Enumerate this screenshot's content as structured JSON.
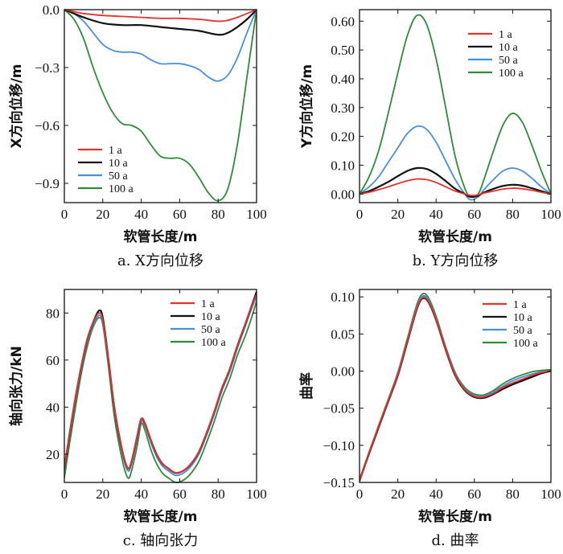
{
  "colors": {
    "s1": "#e8302e",
    "s10": "#111111",
    "s50": "#4a90d9",
    "s100": "#2e8b3a"
  },
  "chart_data": [
    {
      "id": "a",
      "type": "line",
      "title": "",
      "caption": "a. X方向位移",
      "xlabel": "软管长度/m",
      "ylabel": "X方向位移/m",
      "xlim": [
        0,
        100
      ],
      "ylim": [
        -1.0,
        0.0
      ],
      "xticks": [
        0,
        20,
        40,
        60,
        80,
        100
      ],
      "yticks": [
        0.0,
        -0.3,
        -0.6,
        -0.9
      ],
      "ytick_labels": [
        "0.0",
        "−0.3",
        "−0.6",
        "−0.9"
      ],
      "legend": "lower-left",
      "series": [
        {
          "name": "1 a",
          "color_key": "s1",
          "x": [
            0,
            5,
            10,
            20,
            30,
            40,
            50,
            60,
            70,
            80,
            85,
            90,
            95,
            100
          ],
          "values": [
            0,
            -0.01,
            -0.02,
            -0.03,
            -0.035,
            -0.04,
            -0.045,
            -0.045,
            -0.05,
            -0.06,
            -0.055,
            -0.04,
            -0.02,
            0
          ]
        },
        {
          "name": "10 a",
          "color_key": "s10",
          "x": [
            0,
            5,
            10,
            20,
            30,
            40,
            50,
            60,
            70,
            80,
            85,
            90,
            95,
            100
          ],
          "values": [
            0,
            -0.02,
            -0.04,
            -0.07,
            -0.08,
            -0.08,
            -0.09,
            -0.1,
            -0.11,
            -0.13,
            -0.12,
            -0.09,
            -0.05,
            0
          ]
        },
        {
          "name": "50 a",
          "color_key": "s50",
          "x": [
            0,
            5,
            10,
            15,
            20,
            25,
            30,
            35,
            40,
            45,
            50,
            55,
            60,
            65,
            70,
            75,
            80,
            85,
            90,
            95,
            100
          ],
          "values": [
            0,
            -0.02,
            -0.06,
            -0.12,
            -0.18,
            -0.21,
            -0.22,
            -0.22,
            -0.23,
            -0.26,
            -0.28,
            -0.28,
            -0.28,
            -0.29,
            -0.31,
            -0.35,
            -0.37,
            -0.34,
            -0.25,
            -0.12,
            0
          ]
        },
        {
          "name": "100 a",
          "color_key": "s100",
          "x": [
            0,
            5,
            10,
            15,
            20,
            25,
            30,
            35,
            40,
            45,
            50,
            55,
            60,
            65,
            70,
            75,
            80,
            85,
            90,
            95,
            100
          ],
          "values": [
            0,
            -0.05,
            -0.15,
            -0.3,
            -0.43,
            -0.53,
            -0.59,
            -0.6,
            -0.63,
            -0.7,
            -0.76,
            -0.77,
            -0.77,
            -0.8,
            -0.87,
            -0.95,
            -0.99,
            -0.93,
            -0.7,
            -0.35,
            0
          ]
        }
      ]
    },
    {
      "id": "b",
      "type": "line",
      "title": "",
      "caption": "b. Y方向位移",
      "xlabel": "软管长度/m",
      "ylabel": "Y方向位移/m",
      "xlim": [
        0,
        100
      ],
      "ylim": [
        -0.03,
        0.64
      ],
      "xticks": [
        0,
        20,
        40,
        60,
        80,
        100
      ],
      "yticks": [
        0.0,
        0.1,
        0.2,
        0.3,
        0.4,
        0.5,
        0.6
      ],
      "ytick_labels": [
        "0.00",
        "0.10",
        "0.20",
        "0.30",
        "0.40",
        "0.50",
        "0.60"
      ],
      "legend": "top-right",
      "series": [
        {
          "name": "1 a",
          "color_key": "s1",
          "x": [
            0,
            5,
            10,
            15,
            20,
            25,
            30,
            35,
            40,
            45,
            50,
            55,
            58,
            62,
            65,
            70,
            75,
            80,
            85,
            90,
            95,
            100
          ],
          "values": [
            0,
            0.006,
            0.015,
            0.025,
            0.036,
            0.046,
            0.052,
            0.05,
            0.04,
            0.025,
            0.01,
            0.0,
            -0.005,
            -0.003,
            0.003,
            0.01,
            0.017,
            0.02,
            0.018,
            0.013,
            0.006,
            0
          ]
        },
        {
          "name": "10 a",
          "color_key": "s10",
          "x": [
            0,
            5,
            10,
            15,
            20,
            25,
            30,
            35,
            40,
            45,
            50,
            55,
            58,
            62,
            65,
            70,
            75,
            80,
            85,
            90,
            95,
            100
          ],
          "values": [
            0,
            0.01,
            0.025,
            0.042,
            0.062,
            0.08,
            0.09,
            0.087,
            0.07,
            0.045,
            0.018,
            0.0,
            -0.01,
            -0.006,
            0.005,
            0.018,
            0.028,
            0.032,
            0.029,
            0.02,
            0.01,
            0
          ]
        },
        {
          "name": "50 a",
          "color_key": "s50",
          "x": [
            0,
            5,
            10,
            15,
            20,
            25,
            30,
            35,
            40,
            45,
            50,
            55,
            58,
            62,
            65,
            70,
            75,
            80,
            85,
            90,
            95,
            100
          ],
          "values": [
            0,
            0.025,
            0.06,
            0.11,
            0.16,
            0.21,
            0.235,
            0.225,
            0.18,
            0.115,
            0.05,
            0.0,
            -0.02,
            -0.01,
            0.015,
            0.05,
            0.08,
            0.09,
            0.08,
            0.055,
            0.025,
            0
          ]
        },
        {
          "name": "100 a",
          "color_key": "s100",
          "x": [
            0,
            5,
            10,
            15,
            20,
            25,
            30,
            35,
            40,
            45,
            50,
            55,
            58,
            62,
            65,
            70,
            75,
            80,
            85,
            90,
            95,
            100
          ],
          "values": [
            0,
            0.06,
            0.15,
            0.28,
            0.42,
            0.55,
            0.62,
            0.59,
            0.47,
            0.3,
            0.13,
            0.02,
            -0.01,
            0.0,
            0.05,
            0.15,
            0.24,
            0.28,
            0.25,
            0.17,
            0.08,
            0
          ]
        }
      ]
    },
    {
      "id": "c",
      "type": "line",
      "title": "",
      "caption": "c. 轴向张力",
      "xlabel": "软管长度/m",
      "ylabel": "轴向张力/kN",
      "xlim": [
        0,
        100
      ],
      "ylim": [
        8,
        90
      ],
      "xticks": [
        0,
        20,
        40,
        60,
        80,
        100
      ],
      "yticks": [
        20,
        40,
        60,
        80
      ],
      "ytick_labels": [
        "20",
        "40",
        "60",
        "80"
      ],
      "legend": "top-right",
      "series": [
        {
          "name": "1 a",
          "color_key": "s1",
          "x": [
            0,
            3,
            6,
            9,
            12,
            15,
            18,
            20,
            23,
            26,
            30,
            33,
            35,
            38,
            40,
            42,
            45,
            48,
            51,
            54,
            58,
            62,
            66,
            70,
            74,
            78,
            82,
            86,
            90,
            94,
            97,
            100
          ],
          "values": [
            14,
            30,
            45,
            58,
            69,
            76,
            80,
            77,
            60,
            40,
            22,
            14,
            17,
            28,
            35,
            33,
            26,
            20,
            16,
            14,
            12,
            13,
            16,
            21,
            29,
            38,
            48,
            56,
            66,
            75,
            82,
            88
          ]
        },
        {
          "name": "10 a",
          "color_key": "s10",
          "x": [
            0,
            3,
            6,
            9,
            12,
            15,
            18,
            20,
            23,
            26,
            30,
            33,
            35,
            38,
            40,
            42,
            45,
            48,
            51,
            54,
            58,
            62,
            66,
            70,
            74,
            78,
            82,
            86,
            90,
            94,
            97,
            100
          ],
          "values": [
            14,
            30,
            45,
            58,
            69,
            76,
            81,
            78,
            60,
            40,
            22,
            14,
            17,
            28,
            35,
            33,
            26,
            20,
            16,
            14,
            12,
            13,
            16,
            21,
            29,
            38,
            48,
            56,
            66,
            75,
            82,
            89
          ]
        },
        {
          "name": "50 a",
          "color_key": "s50",
          "x": [
            0,
            3,
            6,
            9,
            12,
            15,
            18,
            20,
            23,
            26,
            30,
            33,
            35,
            38,
            40,
            42,
            45,
            48,
            51,
            54,
            58,
            62,
            66,
            70,
            74,
            78,
            82,
            86,
            90,
            94,
            97,
            100
          ],
          "values": [
            13,
            29,
            44,
            57,
            68,
            75,
            79,
            76,
            59,
            39,
            21,
            13,
            16,
            27,
            34,
            32,
            25,
            19,
            15,
            13,
            11,
            12,
            15,
            20,
            28,
            37,
            47,
            55,
            65,
            74,
            81,
            87
          ]
        },
        {
          "name": "100 a",
          "color_key": "s100",
          "x": [
            0,
            3,
            6,
            9,
            12,
            15,
            18,
            20,
            23,
            26,
            30,
            33,
            35,
            38,
            40,
            42,
            45,
            48,
            51,
            54,
            58,
            62,
            66,
            70,
            74,
            78,
            82,
            86,
            90,
            94,
            97,
            100
          ],
          "values": [
            10,
            26,
            41,
            55,
            66,
            74,
            78,
            75,
            57,
            36,
            18,
            10,
            13,
            24,
            33,
            30,
            22,
            16,
            12,
            10,
            8,
            9,
            12,
            17,
            25,
            34,
            44,
            52,
            62,
            70,
            77,
            85
          ]
        }
      ]
    },
    {
      "id": "d",
      "type": "line",
      "title": "",
      "caption": "d. 曲率",
      "xlabel": "软管长度/m",
      "ylabel": "曲率",
      "xlim": [
        0,
        100
      ],
      "ylim": [
        -0.15,
        0.11
      ],
      "xticks": [
        0,
        20,
        40,
        60,
        80,
        100
      ],
      "yticks": [
        0.1,
        0.05,
        0.0,
        -0.05,
        -0.1,
        -0.15
      ],
      "ytick_labels": [
        "0.10",
        "0.05",
        "0.00",
        "−0.05",
        "−0.10",
        "−0.15"
      ],
      "legend": "top-right",
      "series": [
        {
          "name": "1 a",
          "color_key": "s1",
          "x": [
            0,
            5,
            10,
            15,
            20,
            25,
            30,
            33,
            36,
            40,
            45,
            50,
            55,
            60,
            65,
            70,
            75,
            80,
            85,
            90,
            95,
            100
          ],
          "values": [
            -0.148,
            -0.11,
            -0.075,
            -0.04,
            -0.005,
            0.04,
            0.085,
            0.099,
            0.094,
            0.07,
            0.03,
            -0.005,
            -0.025,
            -0.034,
            -0.035,
            -0.03,
            -0.022,
            -0.016,
            -0.011,
            -0.006,
            -0.002,
            0.0
          ]
        },
        {
          "name": "10 a",
          "color_key": "s10",
          "x": [
            0,
            5,
            10,
            15,
            20,
            25,
            30,
            33,
            36,
            40,
            45,
            50,
            55,
            60,
            65,
            70,
            75,
            80,
            85,
            90,
            95,
            100
          ],
          "values": [
            -0.148,
            -0.111,
            -0.076,
            -0.041,
            -0.006,
            0.039,
            0.084,
            0.098,
            0.093,
            0.069,
            0.029,
            -0.006,
            -0.026,
            -0.035,
            -0.036,
            -0.031,
            -0.024,
            -0.018,
            -0.013,
            -0.008,
            -0.003,
            0.0
          ]
        },
        {
          "name": "50 a",
          "color_key": "s50",
          "x": [
            0,
            5,
            10,
            15,
            20,
            25,
            30,
            33,
            36,
            40,
            45,
            50,
            55,
            60,
            65,
            70,
            75,
            80,
            85,
            90,
            95,
            100
          ],
          "values": [
            -0.147,
            -0.11,
            -0.075,
            -0.04,
            -0.004,
            0.041,
            0.087,
            0.101,
            0.096,
            0.071,
            0.031,
            -0.004,
            -0.024,
            -0.033,
            -0.034,
            -0.028,
            -0.02,
            -0.013,
            -0.008,
            -0.004,
            -0.001,
            0.0
          ]
        },
        {
          "name": "100 a",
          "color_key": "s100",
          "x": [
            0,
            5,
            10,
            15,
            20,
            25,
            30,
            33,
            36,
            40,
            45,
            50,
            55,
            60,
            65,
            70,
            75,
            80,
            85,
            90,
            95,
            100
          ],
          "values": [
            -0.146,
            -0.109,
            -0.073,
            -0.038,
            -0.002,
            0.044,
            0.09,
            0.104,
            0.099,
            0.074,
            0.033,
            -0.002,
            -0.022,
            -0.031,
            -0.032,
            -0.026,
            -0.017,
            -0.01,
            -0.005,
            -0.001,
            0.001,
            0.002
          ]
        }
      ]
    }
  ]
}
